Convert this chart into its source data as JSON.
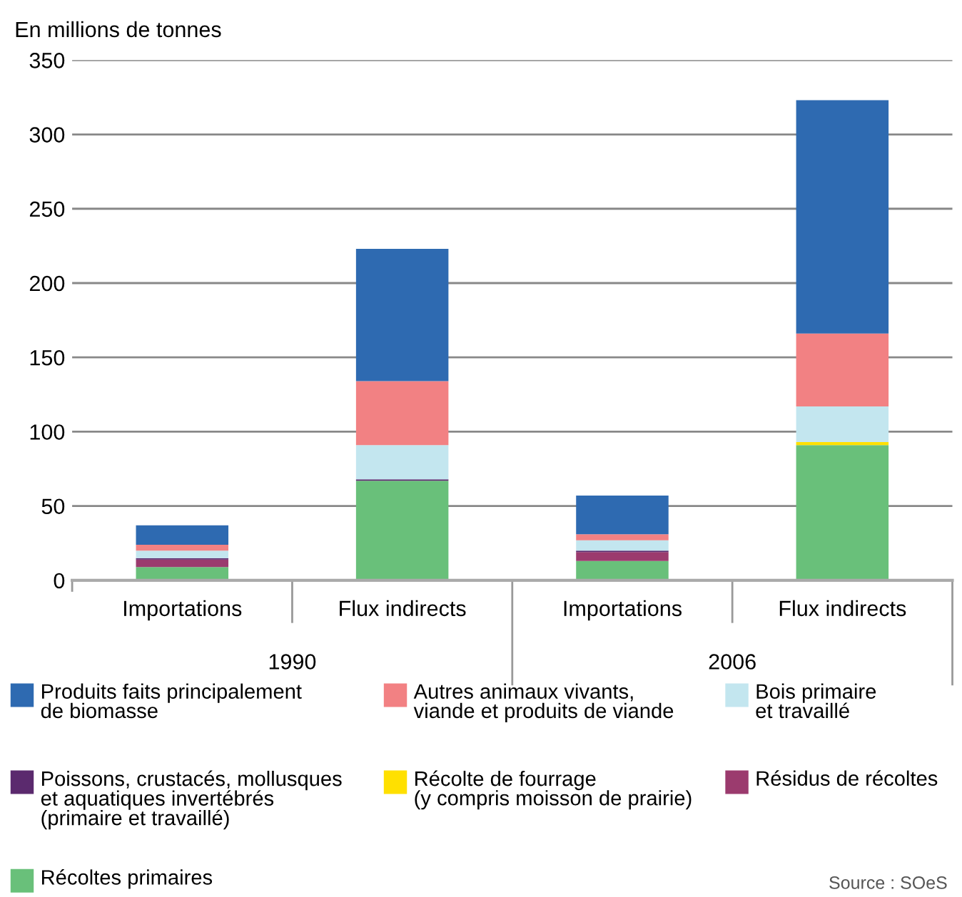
{
  "chart_data": {
    "type": "bar",
    "stacked": true,
    "ylabel": "En millions de tonnes",
    "categories": [
      "Importations",
      "Flux indirects",
      "Importations",
      "Flux indirects"
    ],
    "annotations": [
      "1990",
      "2006",
      "Source : SOeS"
    ],
    "series": [
      {
        "name": "Récoltes primaires",
        "color": "#69c07a",
        "values": [
          9,
          67,
          13,
          91
        ]
      },
      {
        "name": "Résidus de récoltes",
        "color": "#9b3b6e",
        "values": [
          5,
          0,
          6,
          0
        ]
      },
      {
        "name": "Récolte de fourrage\n(y compris moisson de prairie)",
        "color": "#ffe000",
        "values": [
          0,
          0,
          0,
          2
        ]
      },
      {
        "name": "Poissons, crustacés, mollusques\net aquatiques invertébrés\n(primaire et travaillé)",
        "color": "#5b2a6e",
        "values": [
          1,
          1,
          1,
          0
        ]
      },
      {
        "name": "Bois primaire\net travaillé",
        "color": "#c3e6ef",
        "values": [
          5,
          23,
          7,
          24
        ]
      },
      {
        "name": "Autres animaux vivants,\nviande et produits de viande",
        "color": "#f28183",
        "values": [
          4,
          43,
          4,
          49
        ]
      },
      {
        "name": "Produits faits principalement\nde biomasse",
        "color": "#2e6ab1",
        "values": [
          13,
          89,
          26,
          157
        ]
      }
    ],
    "ylim": [
      0,
      350
    ],
    "yticks": [
      0,
      50,
      100,
      150,
      200,
      250,
      300,
      350
    ],
    "grid": "y",
    "legend": "bottom"
  }
}
